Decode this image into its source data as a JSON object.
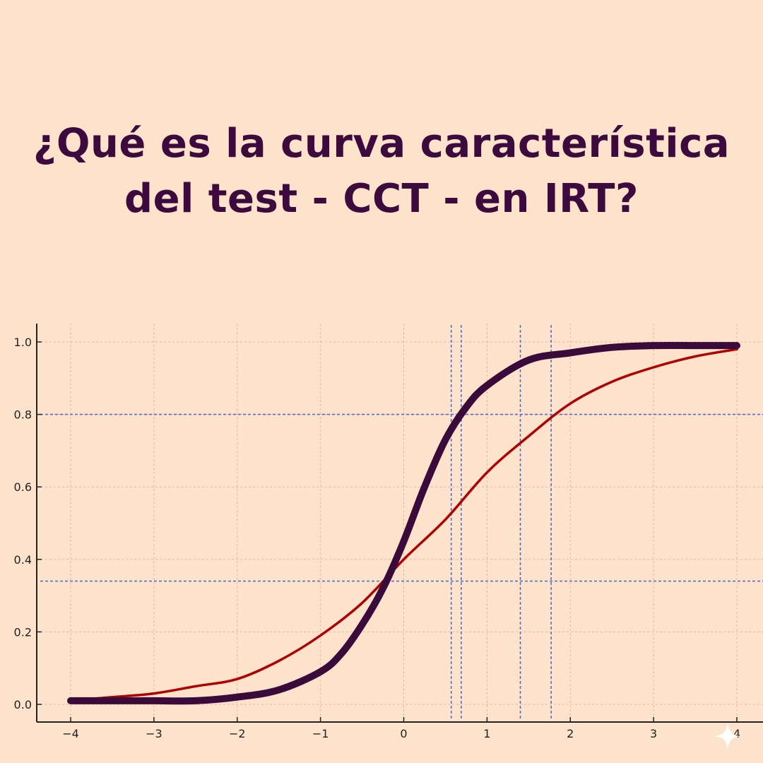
{
  "title": {
    "line1": "¿Qué es la curva característica",
    "line2": "del test - CCT - en IRT?"
  },
  "colors": {
    "background": "#fde3cc",
    "title": "#3d0a3d",
    "grid": "#f0a0a0",
    "reference_lines": "#5070c8",
    "thick_curve": "#3a0a3a",
    "thin_curve": "#b00000"
  },
  "chart_data": {
    "type": "line",
    "title": "",
    "xlabel": "",
    "ylabel": "",
    "xlim": [
      -4,
      4
    ],
    "ylim": [
      0,
      1
    ],
    "grid": true,
    "x_ticks": [
      -4,
      -3,
      -2,
      -1,
      0,
      1,
      2,
      3,
      4
    ],
    "x_tick_labels": [
      "−4",
      "−3",
      "−2",
      "−1",
      "0",
      "1",
      "2",
      "3",
      "4"
    ],
    "y_ticks": [
      0.0,
      0.2,
      0.4,
      0.6,
      0.8,
      1.0
    ],
    "y_tick_labels": [
      "0.0",
      "0.2",
      "0.4",
      "0.6",
      "0.8",
      "1.0"
    ],
    "series": [
      {
        "style": "thick",
        "color": "#3a0a3a",
        "x": [
          -4,
          -3.5,
          -3,
          -2.5,
          -2,
          -1.5,
          -1,
          -0.75,
          -0.5,
          -0.25,
          0,
          0.25,
          0.5,
          0.75,
          1,
          1.5,
          2,
          2.5,
          3,
          3.5,
          4
        ],
        "y": [
          0.01,
          0.01,
          0.01,
          0.01,
          0.02,
          0.04,
          0.09,
          0.14,
          0.22,
          0.32,
          0.45,
          0.6,
          0.73,
          0.82,
          0.88,
          0.95,
          0.97,
          0.985,
          0.99,
          0.99,
          0.99
        ]
      },
      {
        "style": "thin",
        "color": "#b00000",
        "x": [
          -4,
          -3.5,
          -3,
          -2.5,
          -2,
          -1.5,
          -1,
          -0.5,
          0,
          0.5,
          1,
          1.5,
          2,
          2.5,
          3,
          3.5,
          4
        ],
        "y": [
          0.01,
          0.02,
          0.03,
          0.05,
          0.07,
          0.12,
          0.19,
          0.28,
          0.4,
          0.51,
          0.64,
          0.74,
          0.83,
          0.89,
          0.93,
          0.96,
          0.98
        ]
      }
    ],
    "reference_lines": {
      "horizontal": [
        0.8,
        0.34
      ],
      "vertical": [
        0.57,
        0.69,
        1.4,
        1.77
      ]
    }
  }
}
